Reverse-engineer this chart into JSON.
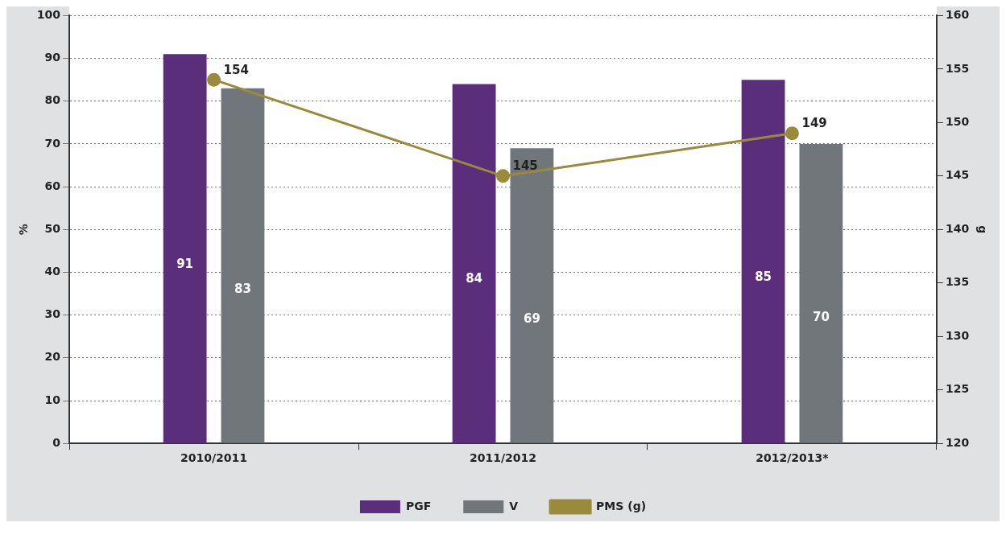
{
  "chart_data": {
    "type": "bar",
    "categories": [
      "2010/2011",
      "2011/2012",
      "2012/2013*"
    ],
    "series": [
      {
        "name": "PGF",
        "color": "#5b2e7c",
        "values": [
          91,
          84,
          85
        ]
      },
      {
        "name": "V",
        "color": "#707679",
        "values": [
          83,
          69,
          70
        ]
      },
      {
        "name": "PMS (g)",
        "type": "line",
        "axis": "y2",
        "color": "#9a8a3c",
        "values": [
          154,
          145,
          149
        ]
      }
    ],
    "ylabel": "%",
    "y2label": "g",
    "ylim": [
      0,
      100
    ],
    "yticks": [
      0,
      10,
      20,
      30,
      40,
      50,
      60,
      70,
      80,
      90,
      100
    ],
    "y2lim": [
      120,
      160
    ],
    "y2ticks": [
      120,
      125,
      130,
      135,
      140,
      145,
      150,
      155,
      160
    ],
    "grid": "y",
    "legend": "bottom",
    "data_labels": true,
    "marker": "circle",
    "line_style": "solid"
  }
}
